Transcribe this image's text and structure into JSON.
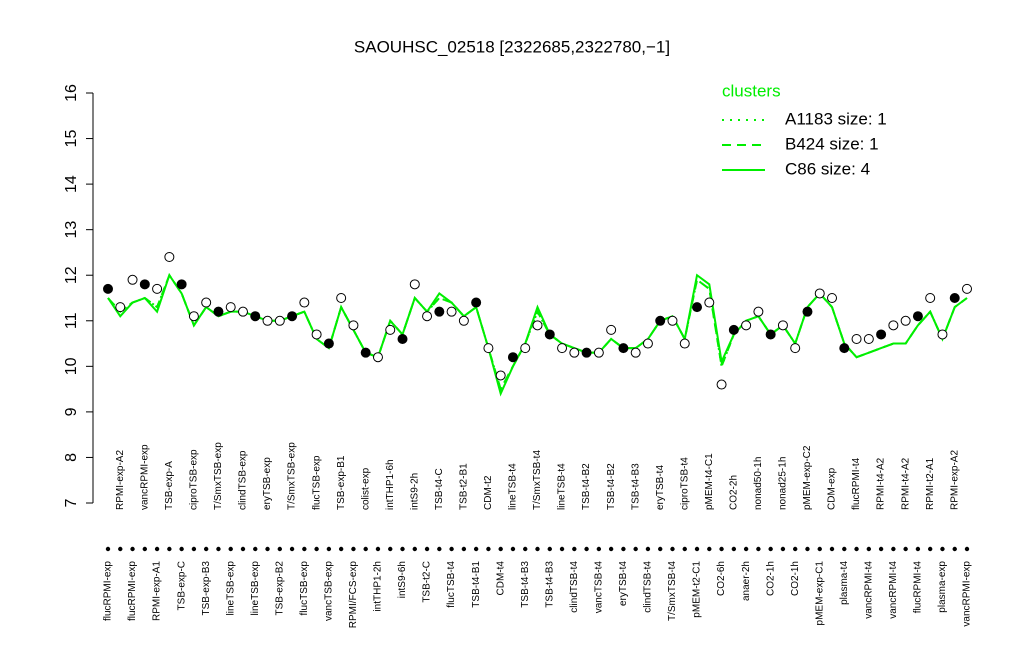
{
  "chart_data": {
    "type": "line",
    "title": "SAOUHSC_02518 [2322685,2322780,−1]",
    "categories": [
      "flucRPMI-exp",
      "RPMI-exp-A2",
      "flucRPMI-exp",
      "vancRPMI-exp",
      "RPMI-exp-A1",
      "TSB-exp-A",
      "TSB-exp-C",
      "ciproTSB-exp",
      "TSB-exp-B3",
      "T/SmxTSB-exp",
      "lineTSB-exp",
      "clindTSB-exp",
      "lineTSB-exp",
      "eryTSB-exp",
      "TSB-exp-B2",
      "T/SmxTSB-exp",
      "flucTSB-exp",
      "flucTSB-exp",
      "vancTSB-exp",
      "TSB-exp-B1",
      "RPMI/FCS-exp",
      "colist-exp",
      "intTHP1-2h",
      "intTHP1-6h",
      "intS9-6h",
      "intS9-2h",
      "TSB-t2-C",
      "TSB-t4-C",
      "flucTSB-t4",
      "TSB-t2-B1",
      "TSB-t4-B1",
      "CDM-t2",
      "CDM-t4",
      "lineTSB-t4",
      "TSB-t4-B3",
      "T/SmxTSB-t4",
      "TSB-t4-B3",
      "lineTSB-t4",
      "clindTSB-t4",
      "TSB-t4-B2",
      "vancTSB-t4",
      "TSB-t4-B2",
      "eryTSB-t4",
      "TSB-t4-B3",
      "clindTSB-t4",
      "eryTSB-t4",
      "T/SmxTSB-t4",
      "ciproTSB-t4",
      "pMEM-t2-C1",
      "pMEM-t4-C1",
      "CO2-6h",
      "CO2-2h",
      "anaer-2h",
      "nonad50-1h",
      "CO2-1h",
      "nonad25-1h",
      "CO2-1h",
      "pMEM-exp-C2",
      "pMEM-exp-C1",
      "CDM-exp",
      "plasma-t4",
      "flucRPMI-t4",
      "vancRPMI-t4",
      "RPMI-t4-A2",
      "vancRPMI-t4",
      "RPMI-t4-A2",
      "flucRPMI-t4",
      "RPMI-t2-A1",
      "plasma-exp",
      "RPMI-exp-A2",
      "vancRPMI-exp"
    ],
    "values": [
      11.7,
      11.3,
      11.9,
      11.8,
      11.7,
      12.4,
      11.8,
      11.1,
      11.4,
      11.2,
      11.3,
      11.2,
      11.1,
      11.0,
      11.0,
      11.1,
      11.4,
      10.7,
      10.5,
      11.5,
      10.9,
      10.3,
      10.2,
      10.8,
      10.6,
      11.8,
      11.1,
      11.2,
      11.2,
      11.0,
      11.4,
      10.4,
      9.8,
      10.2,
      10.4,
      10.9,
      10.7,
      10.4,
      10.3,
      10.3,
      10.3,
      10.8,
      10.4,
      10.3,
      10.5,
      11.0,
      11.0,
      10.5,
      11.3,
      11.4,
      9.6,
      10.8,
      10.9,
      11.2,
      10.7,
      10.9,
      10.4,
      11.2,
      11.6,
      11.5,
      10.4,
      10.6,
      10.6,
      10.7,
      10.9,
      11.0,
      11.1,
      11.5,
      10.7,
      11.5,
      11.7
    ],
    "series": [
      {
        "name": "A1183 size: 1",
        "color": "#00ee00",
        "dash": "dotted",
        "values": [
          11.5,
          11.2,
          11.4,
          11.5,
          11.3,
          12.0,
          11.6,
          10.9,
          11.3,
          11.1,
          11.2,
          11.2,
          11.1,
          11.0,
          11.0,
          11.1,
          11.2,
          10.6,
          10.4,
          11.3,
          10.8,
          10.3,
          10.2,
          11.0,
          10.7,
          11.5,
          11.2,
          11.5,
          11.4,
          11.1,
          11.3,
          10.4,
          9.5,
          10.0,
          10.5,
          11.2,
          10.7,
          10.5,
          10.4,
          10.3,
          10.3,
          10.6,
          10.4,
          10.4,
          10.6,
          11.0,
          11.1,
          10.6,
          11.9,
          11.7,
          10.0,
          10.7,
          11.0,
          11.1,
          10.7,
          10.9,
          10.5,
          11.3,
          11.6,
          11.3,
          10.5,
          10.2,
          10.3,
          10.4,
          10.5,
          10.5,
          10.9,
          11.2,
          10.6,
          11.3,
          11.5
        ]
      },
      {
        "name": "B424 size: 1",
        "color": "#00ee00",
        "dash": "dashed",
        "values": [
          11.5,
          11.2,
          11.4,
          11.5,
          11.3,
          12.0,
          11.6,
          10.9,
          11.3,
          11.1,
          11.2,
          11.2,
          11.1,
          11.0,
          11.0,
          11.1,
          11.2,
          10.6,
          10.4,
          11.3,
          10.8,
          10.3,
          10.2,
          11.0,
          10.7,
          11.5,
          11.2,
          11.5,
          11.4,
          11.1,
          11.3,
          10.4,
          9.5,
          10.0,
          10.5,
          11.2,
          10.7,
          10.5,
          10.4,
          10.3,
          10.3,
          10.6,
          10.4,
          10.4,
          10.6,
          11.0,
          11.1,
          10.6,
          11.9,
          11.7,
          10.0,
          10.7,
          11.0,
          11.1,
          10.7,
          10.9,
          10.5,
          11.3,
          11.6,
          11.3,
          10.5,
          10.2,
          10.3,
          10.4,
          10.5,
          10.5,
          10.9,
          11.2,
          10.6,
          11.3,
          11.5
        ]
      },
      {
        "name": "C86 size: 4",
        "color": "#00ee00",
        "dash": "solid",
        "values": [
          11.5,
          11.1,
          11.4,
          11.5,
          11.2,
          12.0,
          11.6,
          10.9,
          11.3,
          11.1,
          11.2,
          11.2,
          11.1,
          11.0,
          11.0,
          11.1,
          11.2,
          10.6,
          10.4,
          11.3,
          10.8,
          10.3,
          10.2,
          11.0,
          10.7,
          11.5,
          11.2,
          11.6,
          11.4,
          11.1,
          11.3,
          10.4,
          9.4,
          10.0,
          10.5,
          11.3,
          10.7,
          10.5,
          10.4,
          10.3,
          10.3,
          10.6,
          10.4,
          10.4,
          10.6,
          11.0,
          11.1,
          10.6,
          12.0,
          11.8,
          10.1,
          10.7,
          11.0,
          11.1,
          10.7,
          10.9,
          10.5,
          11.3,
          11.6,
          11.3,
          10.5,
          10.2,
          10.3,
          10.4,
          10.5,
          10.5,
          10.9,
          11.2,
          10.6,
          11.3,
          11.5
        ]
      }
    ],
    "legend_title": "clusters",
    "ylim": [
      7,
      16
    ],
    "yticks": [
      7,
      8,
      9,
      10,
      11,
      12,
      13,
      14,
      15,
      16
    ]
  }
}
